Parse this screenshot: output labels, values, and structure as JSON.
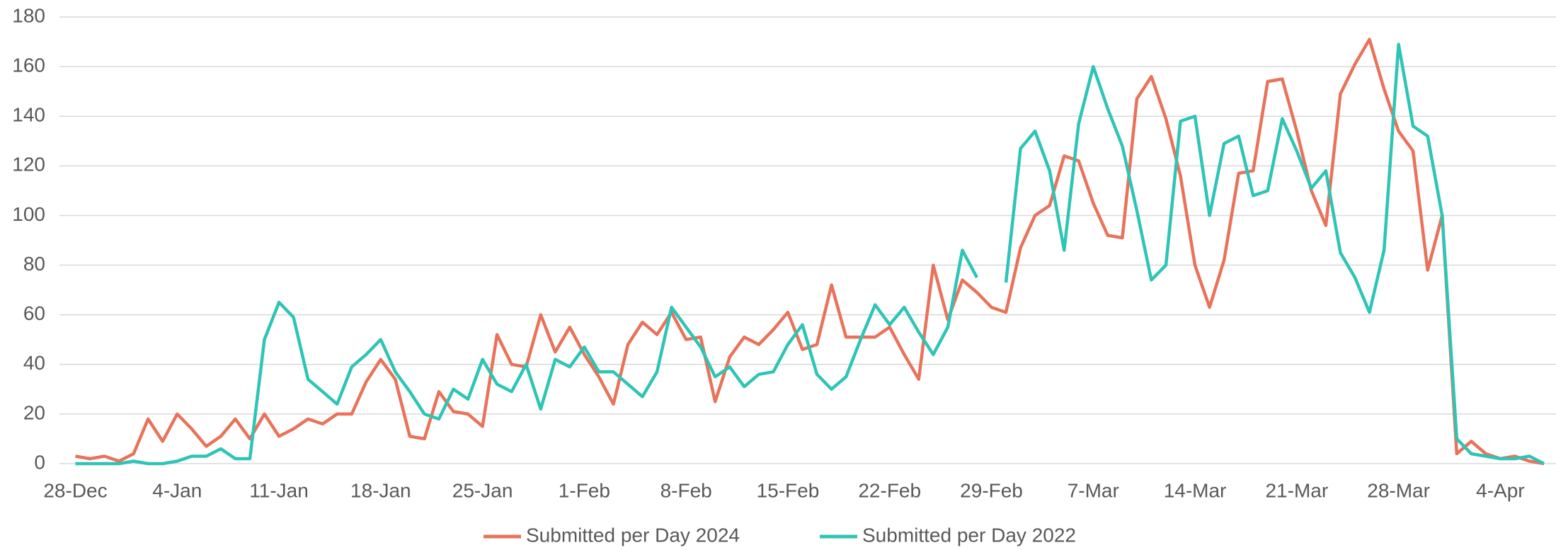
{
  "chart_data": {
    "type": "line",
    "categories": [
      "28-Dec",
      null,
      null,
      null,
      null,
      null,
      null,
      "4-Jan",
      null,
      null,
      null,
      null,
      null,
      null,
      "11-Jan",
      null,
      null,
      null,
      null,
      null,
      null,
      "18-Jan",
      null,
      null,
      null,
      null,
      null,
      null,
      "25-Jan",
      null,
      null,
      null,
      null,
      null,
      null,
      "1-Feb",
      null,
      null,
      null,
      null,
      null,
      null,
      "8-Feb",
      null,
      null,
      null,
      null,
      null,
      null,
      "15-Feb",
      null,
      null,
      null,
      null,
      null,
      null,
      "22-Feb",
      null,
      null,
      null,
      null,
      null,
      null,
      "29-Feb",
      null,
      null,
      null,
      null,
      null,
      null,
      "7-Mar",
      null,
      null,
      null,
      null,
      null,
      null,
      "14-Mar",
      null,
      null,
      null,
      null,
      null,
      null,
      "21-Mar",
      null,
      null,
      null,
      null,
      null,
      null,
      "28-Mar",
      null,
      null,
      null,
      null,
      null,
      null,
      "4-Apr",
      null,
      null,
      null
    ],
    "series": [
      {
        "name": "Submitted per Day 2024",
        "color": "#e8735a",
        "values": [
          3,
          2,
          3,
          1,
          4,
          18,
          9,
          20,
          14,
          7,
          11,
          18,
          10,
          20,
          11,
          14,
          18,
          16,
          20,
          20,
          33,
          42,
          34,
          11,
          10,
          29,
          21,
          20,
          15,
          52,
          40,
          39,
          60,
          45,
          55,
          44,
          35,
          24,
          48,
          57,
          52,
          61,
          50,
          51,
          25,
          43,
          51,
          48,
          54,
          61,
          46,
          48,
          72,
          51,
          51,
          51,
          55,
          44,
          34,
          80,
          58,
          74,
          69,
          63,
          61,
          87,
          100,
          104,
          124,
          122,
          105,
          92,
          91,
          147,
          156,
          139,
          116,
          80,
          63,
          82,
          117,
          118,
          154,
          155,
          134,
          110,
          96,
          149,
          161,
          171,
          151,
          134,
          126,
          78,
          100,
          4,
          9,
          4,
          2,
          3,
          1,
          0
        ]
      },
      {
        "name": "Submitted per Day 2022",
        "color": "#2ec4b6",
        "values": [
          0,
          0,
          0,
          0,
          1,
          0,
          0,
          1,
          3,
          3,
          6,
          2,
          2,
          50,
          65,
          59,
          34,
          29,
          24,
          39,
          44,
          50,
          37,
          29,
          20,
          18,
          30,
          26,
          42,
          32,
          29,
          40,
          22,
          42,
          39,
          47,
          37,
          37,
          32,
          27,
          37,
          63,
          55,
          47,
          35,
          39,
          31,
          36,
          37,
          48,
          56,
          36,
          30,
          35,
          50,
          64,
          56,
          63,
          53,
          44,
          55,
          86,
          75,
          null,
          73,
          127,
          134,
          118,
          86,
          137,
          160,
          143,
          128,
          102,
          74,
          80,
          138,
          140,
          100,
          129,
          132,
          108,
          110,
          139,
          126,
          111,
          118,
          85,
          75,
          61,
          86,
          169,
          136,
          132,
          100,
          10,
          4,
          3,
          2,
          2,
          3,
          0
        ]
      }
    ],
    "ylim": [
      0,
      180
    ],
    "yticks": [
      0,
      20,
      40,
      60,
      80,
      100,
      120,
      140,
      160,
      180
    ],
    "grid": true,
    "legend": "bottom"
  }
}
